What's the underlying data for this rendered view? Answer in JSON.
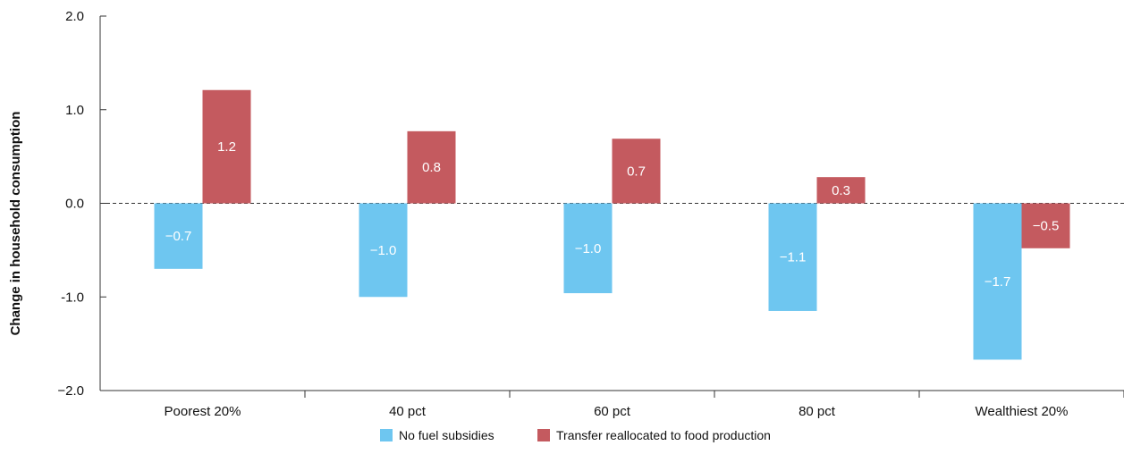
{
  "chart_data": {
    "type": "bar",
    "categories": [
      "Poorest 20%",
      "40 pct",
      "60 pct",
      "80 pct",
      "Wealthiest 20%"
    ],
    "series": [
      {
        "name": "No fuel subsidies",
        "color": "#6ec6f0",
        "values": [
          -0.7,
          -1.0,
          -0.96,
          -1.15,
          -1.67
        ],
        "labels": [
          "−0.7",
          "−1.0",
          "−1.0",
          "−1.1",
          "−1.7"
        ]
      },
      {
        "name": "Transfer reallocated to food production",
        "color": "#c45a5f",
        "values": [
          1.21,
          0.77,
          0.69,
          0.28,
          -0.48
        ],
        "labels": [
          "1.2",
          "0.8",
          "0.7",
          "0.3",
          "−0.5"
        ]
      }
    ],
    "ylabel": "Change in household consumption",
    "ylim": [
      -2.0,
      2.0
    ],
    "yticks": [
      2.0,
      1.0,
      0.0,
      -1.0,
      -2.0
    ],
    "ytick_labels": [
      "2.0",
      "1.0",
      "0.0",
      "-1.0",
      "−2.0"
    ],
    "zero_line": "dashed",
    "grid": false,
    "legend": "bottom-center"
  }
}
